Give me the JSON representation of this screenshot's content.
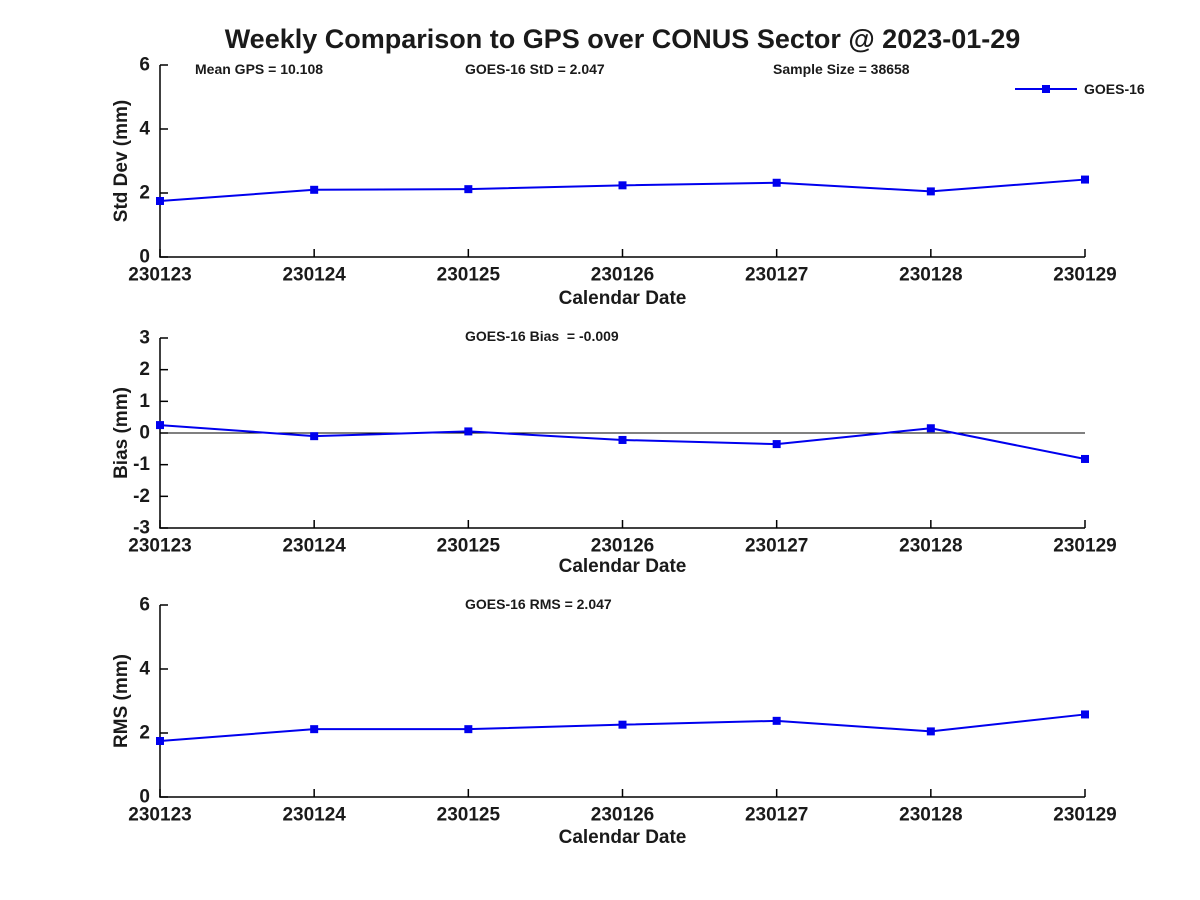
{
  "header": {
    "title": "Weekly Comparison to GPS over CONUS Sector @ 2023-01-29",
    "annotations": [
      "Mean GPS = 10.108",
      "GOES-16 StD = 2.047",
      "Sample Size = 38658"
    ]
  },
  "legend": {
    "label": "GOES-16",
    "position": "top-right-of-first-subplot"
  },
  "colors": {
    "line": "#0000EE",
    "text": "#1a1a1a",
    "axis": "#000000"
  },
  "chart_data": [
    {
      "type": "line",
      "name": "std-dev",
      "categories": [
        "230123",
        "230124",
        "230125",
        "230126",
        "230127",
        "230128",
        "230129"
      ],
      "series": [
        {
          "name": "GOES-16",
          "values": [
            1.75,
            2.1,
            2.12,
            2.24,
            2.32,
            2.05,
            2.42
          ]
        }
      ],
      "ylabel": "Std Dev (mm)",
      "xlabel": "Calendar Date",
      "ylim": [
        0,
        6
      ],
      "yticks": [
        0,
        2,
        4,
        6
      ],
      "zero_line": false,
      "annotation": "",
      "grid": false,
      "marker": "square"
    },
    {
      "type": "line",
      "name": "bias",
      "categories": [
        "230123",
        "230124",
        "230125",
        "230126",
        "230127",
        "230128",
        "230129"
      ],
      "series": [
        {
          "name": "GOES-16",
          "values": [
            0.25,
            -0.1,
            0.05,
            -0.22,
            -0.35,
            0.15,
            -0.82
          ]
        }
      ],
      "ylabel": "Bias (mm)",
      "xlabel": "Calendar Date",
      "ylim": [
        -3,
        3
      ],
      "yticks": [
        -3,
        -2,
        -1,
        0,
        1,
        2,
        3
      ],
      "zero_line": true,
      "annotation": "GOES-16 Bias  = -0.009",
      "grid": false,
      "marker": "square"
    },
    {
      "type": "line",
      "name": "rms",
      "categories": [
        "230123",
        "230124",
        "230125",
        "230126",
        "230127",
        "230128",
        "230129"
      ],
      "series": [
        {
          "name": "GOES-16",
          "values": [
            1.75,
            2.12,
            2.12,
            2.26,
            2.38,
            2.05,
            2.58
          ]
        }
      ],
      "ylabel": "RMS (mm)",
      "xlabel": "Calendar Date",
      "ylim": [
        0,
        6
      ],
      "yticks": [
        0,
        2,
        4,
        6
      ],
      "zero_line": false,
      "annotation": "GOES-16 RMS = 2.047",
      "grid": false,
      "marker": "square"
    }
  ]
}
